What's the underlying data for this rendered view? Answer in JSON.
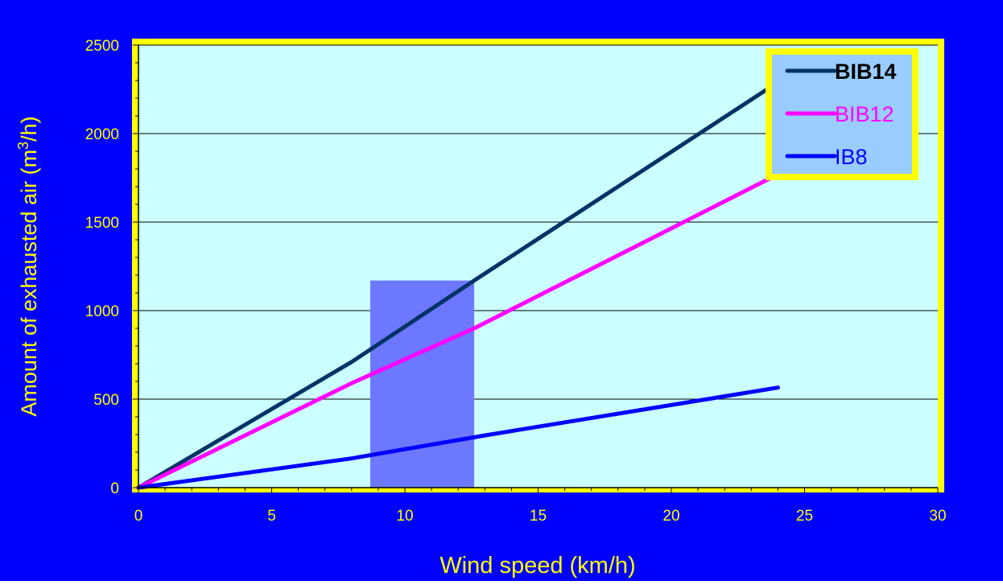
{
  "colors": {
    "background": "#0000ff",
    "plot_fill": "#ccffff",
    "frame": "#ffff00",
    "text": "#ffff00",
    "gridline": "#000000",
    "band": "#6b78ff",
    "legend_fill": "#99ccff"
  },
  "chart_data": {
    "type": "line",
    "xlabel": "Wind speed (km/h)",
    "ylabel_main": "Amount of exhausted air (m",
    "ylabel_sup": "3",
    "ylabel_tail": "/h)",
    "xlim": [
      0,
      30
    ],
    "ylim": [
      0,
      2500
    ],
    "x_ticks": [
      "0",
      "5",
      "10",
      "15",
      "20",
      "25",
      "30"
    ],
    "y_ticks": [
      "0",
      "500",
      "1000",
      "1500",
      "2000",
      "2500"
    ],
    "grid": "horizontal",
    "legend_position": "top-right",
    "highlight_band": {
      "x_from": 8.7,
      "x_to": 12.6,
      "y_from": 0,
      "y_to": 1170
    },
    "series": [
      {
        "name": "BIB14",
        "color": "#003366",
        "bold": true,
        "points": [
          [
            0,
            0
          ],
          [
            8,
            710
          ],
          [
            12.6,
            1170
          ],
          [
            24,
            2290
          ]
        ]
      },
      {
        "name": "BIB12",
        "color": "#ff00ff",
        "bold": false,
        "points": [
          [
            0,
            0
          ],
          [
            8,
            590
          ],
          [
            12.6,
            900
          ],
          [
            24,
            1770
          ]
        ]
      },
      {
        "name": "IB8",
        "color": "#0000ff",
        "bold": false,
        "points": [
          [
            0,
            0
          ],
          [
            8,
            165
          ],
          [
            13,
            295
          ],
          [
            24,
            565
          ]
        ]
      }
    ]
  }
}
